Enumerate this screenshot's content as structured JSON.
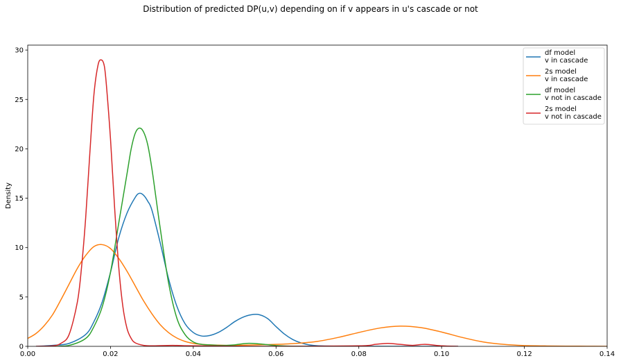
{
  "chart_data": {
    "type": "line",
    "title": "Distribution of predicted DP(u,v) depending on if v appears in u's cascade or not",
    "xlabel": "",
    "ylabel": "Density",
    "xlim": [
      0.0,
      0.14
    ],
    "ylim": [
      0,
      30.5
    ],
    "xticks": [
      "0.00",
      "0.02",
      "0.04",
      "0.06",
      "0.08",
      "0.10",
      "0.12",
      "0.14"
    ],
    "yticks": [
      "0",
      "5",
      "10",
      "15",
      "20",
      "25",
      "30"
    ],
    "grid": false,
    "legend_position": "top-right",
    "series": [
      {
        "name": "df model\nv in cascade",
        "color": "#1f77b4",
        "x": [
          0.002,
          0.006,
          0.01,
          0.014,
          0.016,
          0.018,
          0.02,
          0.022,
          0.024,
          0.026,
          0.027,
          0.028,
          0.029,
          0.03,
          0.032,
          0.034,
          0.036,
          0.038,
          0.04,
          0.042,
          0.044,
          0.046,
          0.048,
          0.05,
          0.052,
          0.054,
          0.056,
          0.058,
          0.06,
          0.062,
          0.064,
          0.066,
          0.068,
          0.07,
          0.074,
          0.08,
          0.09,
          0.104
        ],
        "y": [
          0.0,
          0.1,
          0.3,
          1.2,
          2.5,
          4.5,
          7.5,
          11.0,
          13.5,
          15.1,
          15.5,
          15.3,
          14.7,
          13.8,
          10.5,
          6.9,
          4.1,
          2.3,
          1.4,
          1.05,
          1.1,
          1.4,
          1.9,
          2.5,
          2.95,
          3.2,
          3.2,
          2.8,
          2.0,
          1.25,
          0.7,
          0.35,
          0.15,
          0.06,
          0.02,
          0.01,
          0.0,
          0.0
        ]
      },
      {
        "name": "2s model\nv in cascade",
        "color": "#ff7f0e",
        "x": [
          0.0,
          0.002,
          0.004,
          0.006,
          0.008,
          0.01,
          0.012,
          0.014,
          0.016,
          0.018,
          0.02,
          0.022,
          0.024,
          0.026,
          0.028,
          0.03,
          0.032,
          0.034,
          0.036,
          0.038,
          0.04,
          0.042,
          0.044,
          0.046,
          0.048,
          0.05,
          0.055,
          0.06,
          0.065,
          0.07,
          0.075,
          0.08,
          0.085,
          0.09,
          0.095,
          0.1,
          0.105,
          0.11,
          0.115,
          0.12,
          0.125,
          0.13,
          0.135,
          0.14
        ],
        "y": [
          0.8,
          1.3,
          2.1,
          3.2,
          4.7,
          6.3,
          7.9,
          9.2,
          10.1,
          10.3,
          9.9,
          8.9,
          7.6,
          6.1,
          4.6,
          3.3,
          2.2,
          1.4,
          0.85,
          0.5,
          0.3,
          0.2,
          0.15,
          0.12,
          0.1,
          0.1,
          0.15,
          0.2,
          0.3,
          0.5,
          0.9,
          1.4,
          1.85,
          2.05,
          1.9,
          1.45,
          0.9,
          0.45,
          0.2,
          0.08,
          0.04,
          0.02,
          0.01,
          0.0
        ]
      },
      {
        "name": "df model\nv not in cascade",
        "color": "#2ca02c",
        "x": [
          0.006,
          0.01,
          0.014,
          0.016,
          0.018,
          0.02,
          0.022,
          0.024,
          0.025,
          0.026,
          0.027,
          0.028,
          0.029,
          0.03,
          0.031,
          0.032,
          0.034,
          0.036,
          0.038,
          0.04,
          0.042,
          0.044,
          0.046,
          0.048,
          0.05,
          0.053,
          0.056,
          0.06,
          0.064,
          0.07
        ],
        "y": [
          0.0,
          0.1,
          0.8,
          2.0,
          4.0,
          7.5,
          12.5,
          17.5,
          20.0,
          21.6,
          22.1,
          21.7,
          20.4,
          18.0,
          15.0,
          12.0,
          6.5,
          2.9,
          1.2,
          0.45,
          0.2,
          0.15,
          0.1,
          0.1,
          0.15,
          0.3,
          0.25,
          0.08,
          0.02,
          0.0
        ]
      },
      {
        "name": "2s model\nv not in cascade",
        "color": "#d62728",
        "x": [
          0.002,
          0.006,
          0.008,
          0.01,
          0.012,
          0.013,
          0.014,
          0.015,
          0.016,
          0.017,
          0.0178,
          0.0185,
          0.019,
          0.02,
          0.021,
          0.022,
          0.023,
          0.024,
          0.025,
          0.026,
          0.028,
          0.03,
          0.035,
          0.04,
          0.06,
          0.08,
          0.084,
          0.087,
          0.09,
          0.093,
          0.096,
          0.1,
          0.104
        ],
        "y": [
          0.0,
          0.05,
          0.3,
          1.2,
          4.5,
          8.0,
          13.0,
          19.5,
          25.5,
          28.5,
          29.0,
          28.4,
          26.5,
          21.0,
          14.0,
          8.0,
          4.0,
          1.8,
          0.8,
          0.35,
          0.1,
          0.05,
          0.1,
          0.05,
          0.0,
          0.05,
          0.2,
          0.3,
          0.2,
          0.1,
          0.2,
          0.05,
          0.0
        ]
      }
    ]
  }
}
